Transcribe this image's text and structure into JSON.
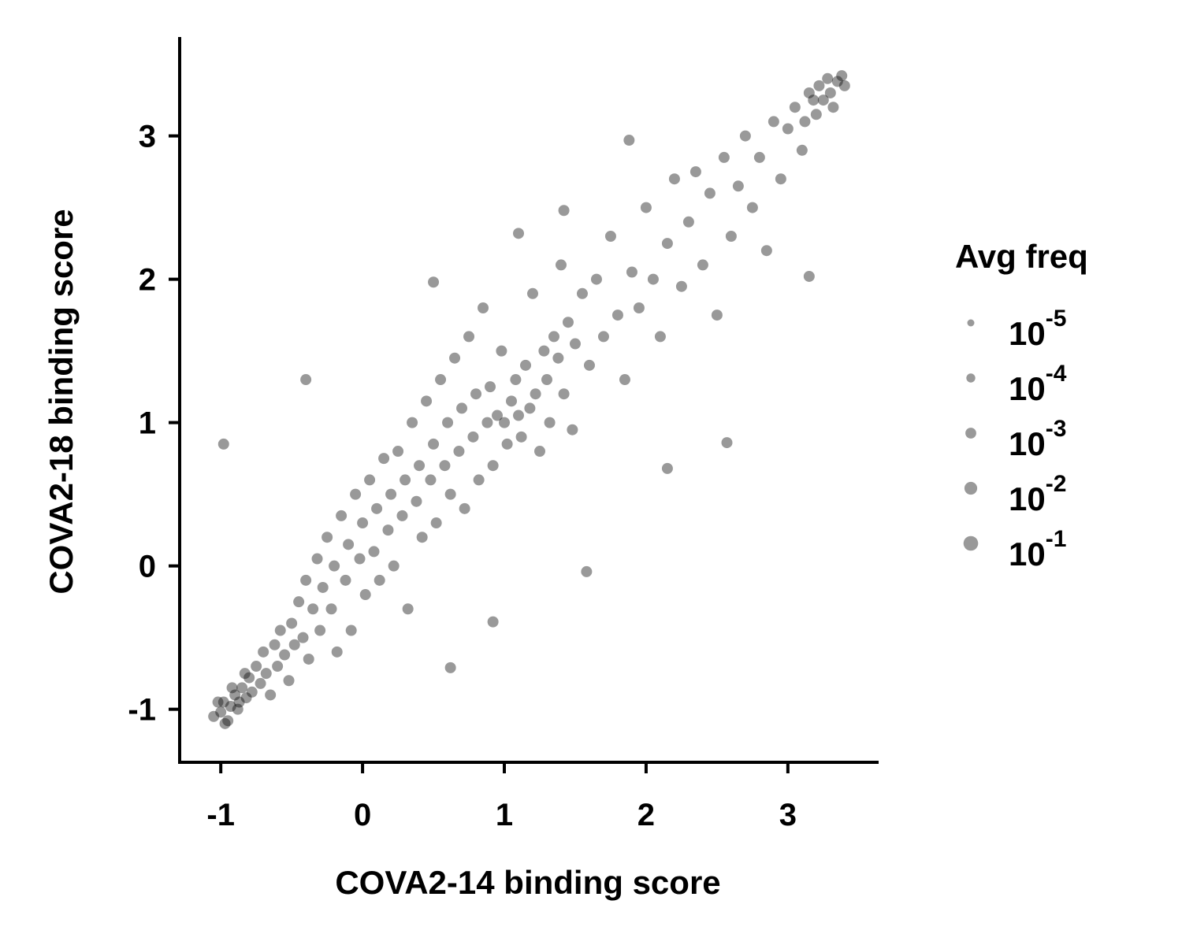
{
  "chart_data": {
    "type": "scatter",
    "x_label": "COVA2-14 binding score",
    "y_label": "COVA2-18 binding score",
    "xlim": [
      -1.29,
      3.64
    ],
    "ylim": [
      -1.37,
      3.69
    ],
    "xticks": [
      -1,
      0,
      1,
      2,
      3
    ],
    "yticks": [
      -1,
      0,
      1,
      2,
      3
    ],
    "grid": false,
    "series": [
      {
        "color": "#000000",
        "x": [
          -1.05,
          -1.0,
          -0.98,
          -0.95,
          -0.93,
          -0.9,
          -0.88,
          -0.85,
          -0.82,
          -0.8,
          -0.78,
          -0.75,
          -0.72,
          -0.7,
          -0.68,
          -0.65,
          -0.62,
          -0.6,
          -0.58,
          -0.55,
          -0.52,
          -0.5,
          -0.48,
          -0.45,
          -0.42,
          -0.4,
          -0.38,
          -0.35,
          -0.32,
          -0.3,
          -0.28,
          -0.25,
          -0.22,
          -0.2,
          -0.18,
          -0.15,
          -0.12,
          -0.1,
          -0.08,
          -0.05,
          -0.02,
          0.0,
          0.02,
          0.05,
          0.08,
          0.1,
          0.12,
          0.15,
          0.18,
          0.2,
          0.22,
          0.25,
          0.28,
          0.3,
          0.32,
          0.35,
          0.38,
          0.4,
          0.42,
          0.45,
          0.48,
          0.5,
          0.52,
          0.55,
          0.58,
          0.6,
          0.62,
          0.65,
          0.68,
          0.7,
          0.72,
          0.75,
          0.78,
          0.8,
          0.82,
          0.85,
          0.88,
          0.9,
          0.92,
          0.95,
          0.98,
          1.0,
          1.02,
          1.05,
          1.08,
          1.1,
          1.12,
          1.15,
          1.18,
          1.2,
          1.22,
          1.25,
          1.28,
          1.3,
          1.32,
          1.35,
          1.38,
          1.4,
          1.42,
          1.45,
          1.48,
          1.5,
          1.55,
          1.6,
          1.65,
          1.7,
          1.75,
          1.8,
          1.85,
          1.9,
          1.95,
          2.0,
          2.05,
          2.1,
          2.15,
          2.2,
          2.25,
          2.3,
          2.35,
          2.4,
          2.45,
          2.5,
          2.55,
          2.6,
          2.65,
          2.7,
          2.75,
          2.8,
          2.85,
          2.9,
          2.95,
          3.0,
          3.05,
          3.1,
          3.15,
          3.2,
          3.22,
          3.25,
          3.28,
          3.3,
          3.32,
          3.35,
          3.38,
          3.4,
          3.18,
          3.12,
          -0.98,
          -0.4,
          0.5,
          1.1,
          1.42,
          1.58,
          2.15,
          2.57,
          0.62,
          0.92,
          1.88,
          3.15,
          -1.02,
          -0.97,
          -0.92,
          -0.87,
          -0.83
        ],
        "y": [
          -1.05,
          -1.02,
          -0.95,
          -1.08,
          -0.98,
          -0.9,
          -1.0,
          -0.85,
          -0.92,
          -0.78,
          -0.88,
          -0.7,
          -0.82,
          -0.6,
          -0.75,
          -0.9,
          -0.55,
          -0.7,
          -0.45,
          -0.62,
          -0.8,
          -0.4,
          -0.55,
          -0.25,
          -0.5,
          -0.1,
          -0.65,
          -0.3,
          0.05,
          -0.45,
          -0.15,
          0.2,
          -0.3,
          0.0,
          -0.6,
          0.35,
          -0.1,
          0.15,
          -0.45,
          0.5,
          0.05,
          0.3,
          -0.2,
          0.6,
          0.1,
          0.4,
          -0.1,
          0.75,
          0.25,
          0.5,
          0.0,
          0.8,
          0.35,
          0.6,
          -0.3,
          1.0,
          0.45,
          0.7,
          0.2,
          1.15,
          0.6,
          0.85,
          0.3,
          1.3,
          0.7,
          1.0,
          0.5,
          1.45,
          0.8,
          1.1,
          0.4,
          1.6,
          0.9,
          1.2,
          0.6,
          1.8,
          1.0,
          1.25,
          0.7,
          1.05,
          1.5,
          1.0,
          0.85,
          1.15,
          1.3,
          1.05,
          0.9,
          1.4,
          1.1,
          1.9,
          1.2,
          0.8,
          1.5,
          1.3,
          1.0,
          1.6,
          1.45,
          2.1,
          1.2,
          1.7,
          0.95,
          1.55,
          1.9,
          1.4,
          2.0,
          1.6,
          2.3,
          1.75,
          1.3,
          2.05,
          1.8,
          2.5,
          2.0,
          1.6,
          2.25,
          2.7,
          1.95,
          2.4,
          2.75,
          2.1,
          2.6,
          1.75,
          2.85,
          2.3,
          2.65,
          3.0,
          2.5,
          2.85,
          2.2,
          3.1,
          2.7,
          3.05,
          3.2,
          2.9,
          3.3,
          3.15,
          3.35,
          3.25,
          3.4,
          3.3,
          3.2,
          3.38,
          3.42,
          3.35,
          3.25,
          3.1,
          0.85,
          1.3,
          1.98,
          2.32,
          2.48,
          -0.04,
          0.68,
          0.86,
          -0.71,
          -0.39,
          2.97,
          2.02,
          -0.95,
          -1.1,
          -0.85,
          -0.95,
          -0.75
        ]
      }
    ],
    "legend_title": "Avg freq",
    "legend": [
      {
        "value": 1e-05,
        "base": "10",
        "exponent": "-5"
      },
      {
        "value": 0.0001,
        "base": "10",
        "exponent": "-4"
      },
      {
        "value": 0.001,
        "base": "10",
        "exponent": "-3"
      },
      {
        "value": 0.01,
        "base": "10",
        "exponent": "-2"
      },
      {
        "value": 0.1,
        "base": "10",
        "exponent": "-1"
      }
    ],
    "legend_color": "#999999"
  }
}
